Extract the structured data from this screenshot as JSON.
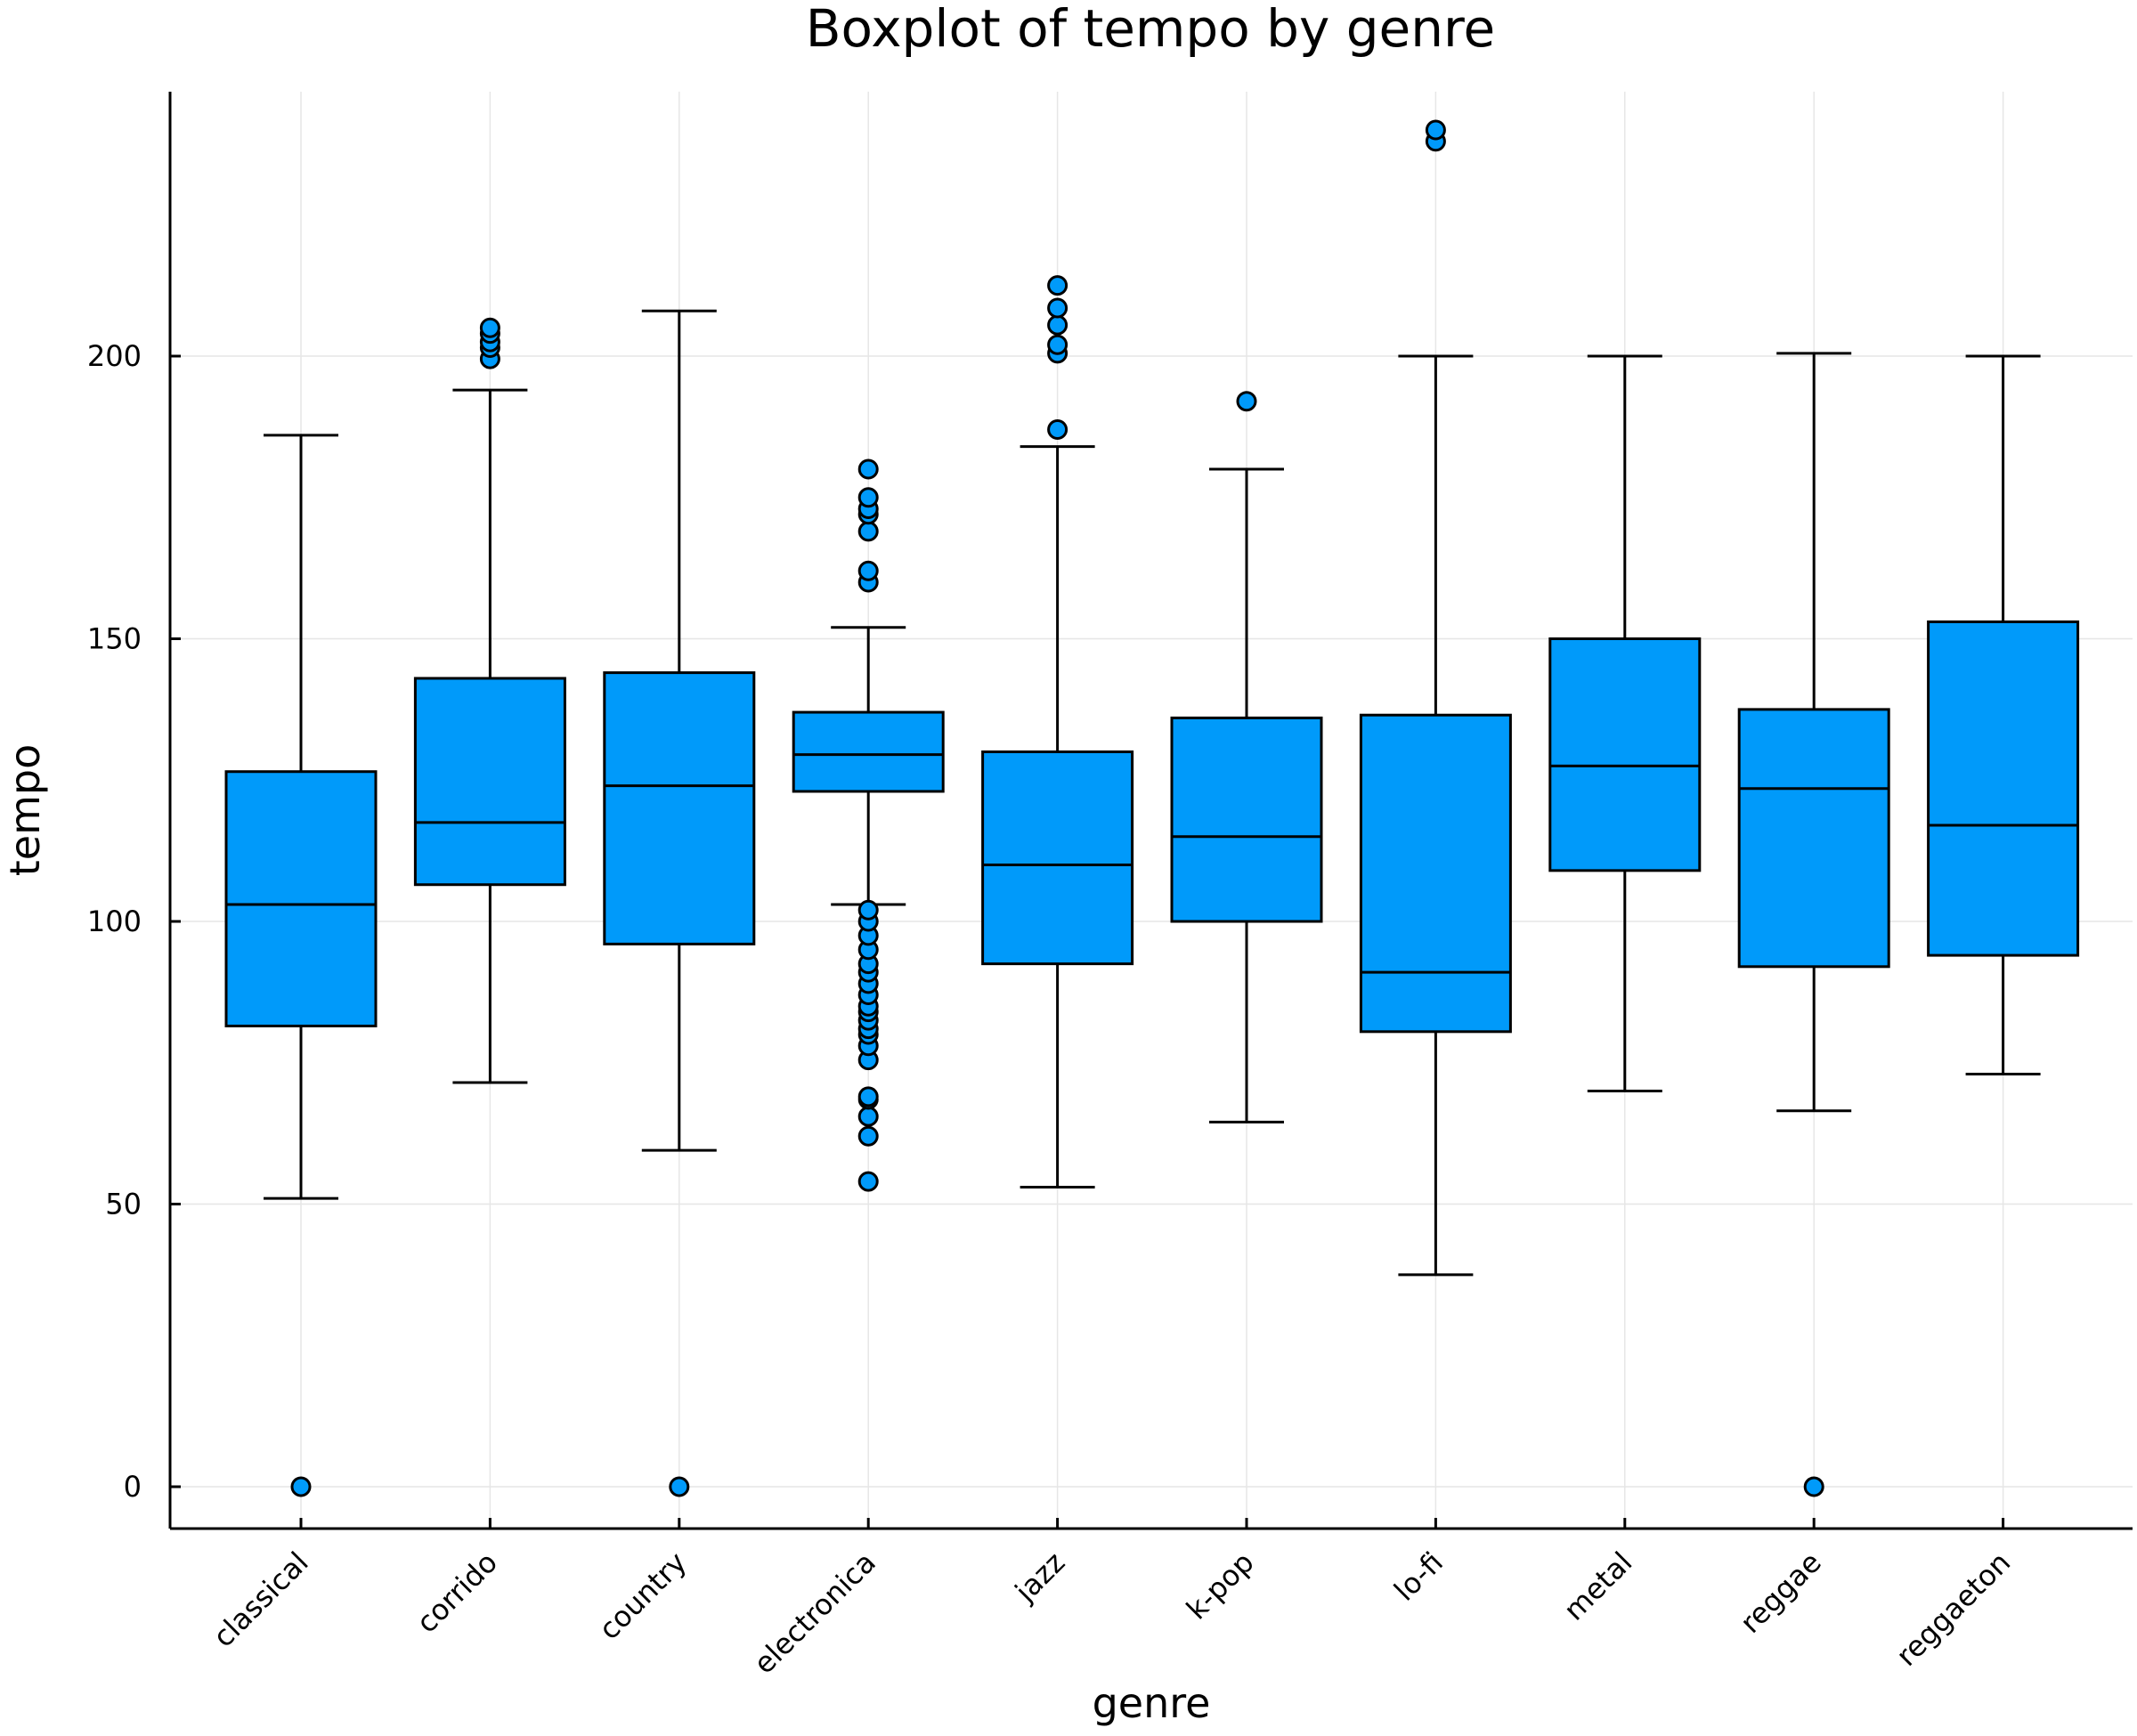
{
  "chart_data": {
    "type": "box",
    "title": "Boxplot of tempo by genre",
    "xlabel": "genre",
    "ylabel": "tempo",
    "ylim": [
      -7,
      247
    ],
    "yticks": [
      0,
      50,
      100,
      150,
      200
    ],
    "grid": true,
    "legend": "none",
    "box_color": "#009AFA",
    "categories": [
      "classical",
      "corrido",
      "country",
      "electronica",
      "jazz",
      "k-pop",
      "lo-fi",
      "metal",
      "reggae",
      "reggaeton"
    ],
    "boxes": [
      {
        "q1": 81.5,
        "median": 103,
        "q3": 126.5,
        "whisker_low": 51,
        "whisker_high": 186,
        "outliers": [
          0
        ]
      },
      {
        "q1": 106.5,
        "median": 117.5,
        "q3": 143,
        "whisker_low": 71.5,
        "whisker_high": 194,
        "outliers": [
          199.5,
          201.5,
          202.5,
          204,
          205
        ]
      },
      {
        "q1": 96,
        "median": 124,
        "q3": 144,
        "whisker_low": 59.5,
        "whisker_high": 208,
        "outliers": [
          0
        ]
      },
      {
        "q1": 123,
        "median": 129.5,
        "q3": 137,
        "whisker_low": 103,
        "whisker_high": 152,
        "outliers": [
          54,
          62,
          65.5,
          68.5,
          69,
          75.5,
          78,
          80,
          81,
          82.5,
          84,
          85,
          87,
          89,
          91,
          92.5,
          95,
          97.5,
          100,
          102,
          160,
          162,
          169,
          172,
          173,
          175,
          180
        ]
      },
      {
        "q1": 92.5,
        "median": 110,
        "q3": 130,
        "whisker_low": 53,
        "whisker_high": 184,
        "outliers": [
          187,
          200.5,
          202,
          205.5,
          208.5,
          212.5
        ]
      },
      {
        "q1": 100,
        "median": 115,
        "q3": 136,
        "whisker_low": 64.5,
        "whisker_high": 180,
        "outliers": [
          192
        ]
      },
      {
        "q1": 80.5,
        "median": 91,
        "q3": 136.5,
        "whisker_low": 37.5,
        "whisker_high": 200,
        "outliers": [
          238,
          240
        ]
      },
      {
        "q1": 109,
        "median": 127.5,
        "q3": 150,
        "whisker_low": 70,
        "whisker_high": 200,
        "outliers": []
      },
      {
        "q1": 92,
        "median": 123.5,
        "q3": 137.5,
        "whisker_low": 66.5,
        "whisker_high": 200.5,
        "outliers": [
          0
        ]
      },
      {
        "q1": 94,
        "median": 117,
        "q3": 153,
        "whisker_low": 73,
        "whisker_high": 200,
        "outliers": []
      }
    ]
  }
}
